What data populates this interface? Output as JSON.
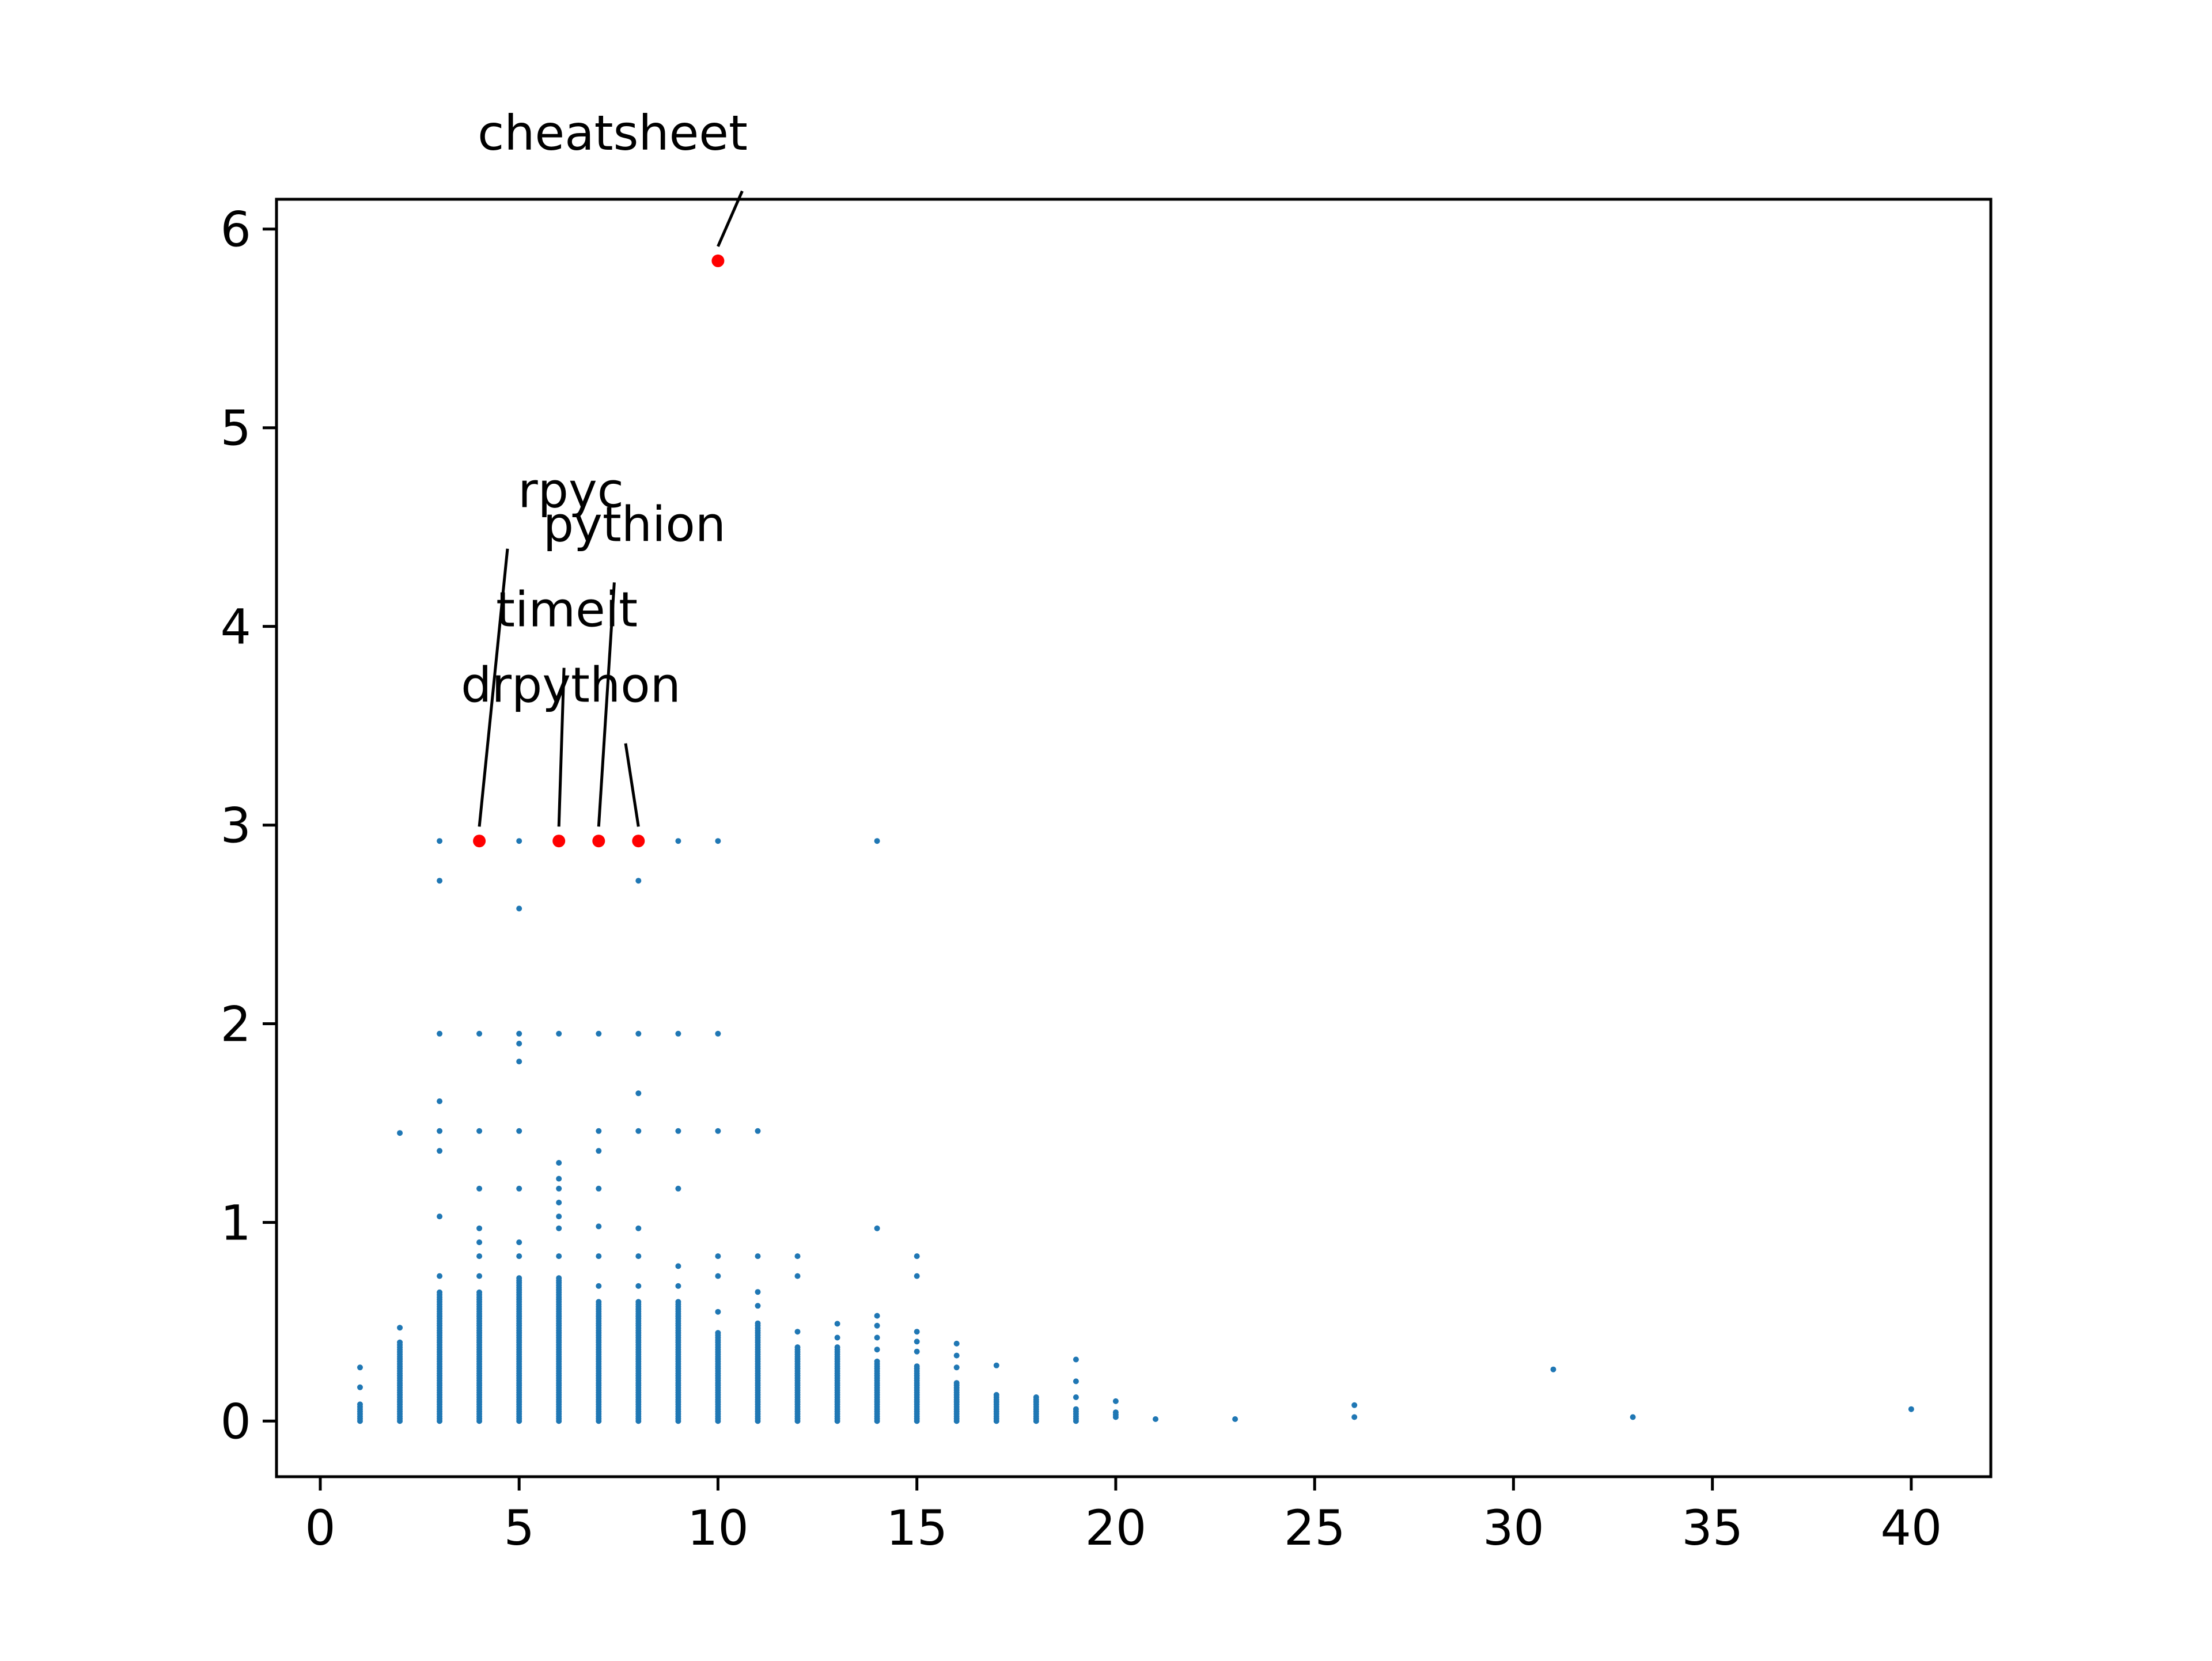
{
  "chart_data": {
    "type": "scatter",
    "title": "",
    "xlabel": "",
    "ylabel": "",
    "xlim": [
      -1.1,
      42.0
    ],
    "ylim": [
      -0.28,
      6.15
    ],
    "xticks": [
      0,
      5,
      10,
      15,
      20,
      25,
      30,
      35,
      40
    ],
    "yticks": [
      0,
      1,
      2,
      3,
      4,
      5,
      6
    ],
    "xtick_labels": [
      "0",
      "5",
      "10",
      "15",
      "20",
      "25",
      "30",
      "35",
      "40"
    ],
    "ytick_labels": [
      "0",
      "1",
      "2",
      "3",
      "4",
      "5",
      "6"
    ],
    "grid": false,
    "legend": "none",
    "colors": {
      "points": "#1f77b4",
      "highlight": "#ff0000",
      "annotation_line": "#000000"
    },
    "columns": [
      {
        "x": 1,
        "min": 0.0,
        "max": 0.09,
        "extra": [
          0.17,
          0.27
        ]
      },
      {
        "x": 2,
        "min": 0.0,
        "max": 0.4,
        "extra": [
          0.47,
          1.45
        ]
      },
      {
        "x": 3,
        "min": 0.0,
        "max": 0.65,
        "extra": [
          0.73,
          1.03,
          1.36,
          1.46,
          1.61,
          1.95,
          2.72,
          2.92
        ]
      },
      {
        "x": 4,
        "min": 0.0,
        "max": 0.65,
        "extra": [
          0.73,
          0.83,
          0.9,
          0.97,
          1.17,
          1.46,
          1.95
        ]
      },
      {
        "x": 5,
        "min": 0.0,
        "max": 0.73,
        "extra": [
          0.83,
          0.9,
          1.17,
          1.46,
          1.81,
          1.9,
          1.95,
          2.58,
          2.92
        ]
      },
      {
        "x": 6,
        "min": 0.0,
        "max": 0.73,
        "extra": [
          0.83,
          0.97,
          1.03,
          1.1,
          1.17,
          1.22,
          1.3,
          1.95
        ]
      },
      {
        "x": 7,
        "min": 0.0,
        "max": 0.6,
        "extra": [
          0.68,
          0.83,
          0.98,
          1.17,
          1.36,
          1.46,
          1.95
        ]
      },
      {
        "x": 8,
        "min": 0.0,
        "max": 0.6,
        "extra": [
          0.68,
          0.83,
          0.97,
          1.46,
          1.65,
          1.95,
          2.72
        ]
      },
      {
        "x": 9,
        "min": 0.0,
        "max": 0.6,
        "extra": [
          0.68,
          0.78,
          1.17,
          1.46,
          1.95,
          2.92
        ]
      },
      {
        "x": 10,
        "min": 0.0,
        "max": 0.45,
        "extra": [
          0.55,
          0.73,
          0.83,
          1.46,
          1.95,
          2.92
        ]
      },
      {
        "x": 11,
        "min": 0.0,
        "max": 0.5,
        "extra": [
          0.58,
          0.65,
          0.83,
          1.46
        ]
      },
      {
        "x": 12,
        "min": 0.0,
        "max": 0.38,
        "extra": [
          0.45,
          0.73,
          0.83
        ]
      },
      {
        "x": 13,
        "min": 0.0,
        "max": 0.38,
        "extra": [
          0.42,
          0.49
        ]
      },
      {
        "x": 14,
        "min": 0.0,
        "max": 0.3,
        "extra": [
          0.36,
          0.42,
          0.48,
          0.53,
          0.97,
          2.92
        ]
      },
      {
        "x": 15,
        "min": 0.0,
        "max": 0.28,
        "extra": [
          0.35,
          0.4,
          0.45,
          0.73,
          0.83
        ]
      },
      {
        "x": 16,
        "min": 0.0,
        "max": 0.2,
        "extra": [
          0.27,
          0.33,
          0.39
        ]
      },
      {
        "x": 17,
        "min": 0.0,
        "max": 0.14,
        "extra": [
          0.28
        ]
      },
      {
        "x": 18,
        "min": 0.0,
        "max": 0.13,
        "extra": []
      },
      {
        "x": 19,
        "min": 0.0,
        "max": 0.06,
        "extra": [
          0.12,
          0.2,
          0.31
        ]
      },
      {
        "x": 20,
        "min": 0.02,
        "max": 0.05,
        "extra": [
          0.1
        ]
      },
      {
        "x": 21,
        "min": 0.01,
        "max": 0.02,
        "extra": []
      }
    ],
    "points": [
      {
        "x": 23,
        "y": 0.01
      },
      {
        "x": 26,
        "y": 0.02
      },
      {
        "x": 26,
        "y": 0.08
      },
      {
        "x": 31,
        "y": 0.26
      },
      {
        "x": 33,
        "y": 0.02
      },
      {
        "x": 40,
        "y": 0.06
      }
    ],
    "highlighted": [
      {
        "x": 10,
        "y": 5.84,
        "label": "cheatsheet",
        "text_x": 7.35,
        "text_y": 6.4
      },
      {
        "x": 4,
        "y": 2.92,
        "label": "rpyc",
        "text_x": 6.3,
        "text_y": 4.6
      },
      {
        "x": 6,
        "y": 2.92,
        "label": "timeit",
        "text_x": 6.2,
        "text_y": 4.0
      },
      {
        "x": 7,
        "y": 2.92,
        "label": "pythion",
        "text_x": 7.9,
        "text_y": 4.43
      },
      {
        "x": 8,
        "y": 2.92,
        "label": "drpython",
        "text_x": 6.3,
        "text_y": 3.62
      }
    ]
  }
}
